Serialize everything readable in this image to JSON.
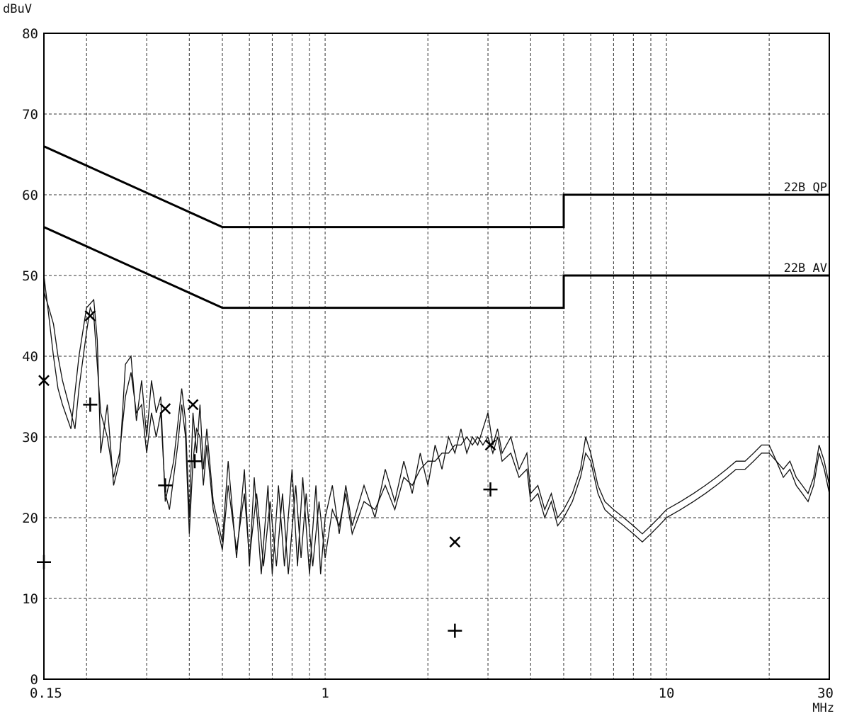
{
  "chart_data": {
    "type": "line",
    "y_unit_label": "dBuV",
    "x_unit_label": "MHz",
    "x_scale": "log",
    "xlim": [
      0.15,
      30
    ],
    "ylim": [
      0,
      80
    ],
    "grid": true,
    "y_ticks": [
      0,
      10,
      20,
      30,
      40,
      50,
      60,
      70,
      80
    ],
    "x_tick_labels": [
      {
        "value": 0.15,
        "label": "0.15"
      },
      {
        "value": 1,
        "label": "1"
      },
      {
        "value": 10,
        "label": "10"
      },
      {
        "value": 30,
        "label": "30"
      }
    ],
    "x_gridlines": [
      0.2,
      0.3,
      0.4,
      0.5,
      0.6,
      0.7,
      0.8,
      0.9,
      1,
      2,
      3,
      4,
      5,
      6,
      7,
      8,
      9,
      10,
      20
    ],
    "limit_lines": [
      {
        "name": "22B_QP",
        "points": [
          [
            0.15,
            66
          ],
          [
            0.5,
            56
          ],
          [
            5,
            56
          ],
          [
            5,
            60
          ],
          [
            30,
            60
          ]
        ]
      },
      {
        "name": "22B_AV",
        "points": [
          [
            0.15,
            56
          ],
          [
            0.5,
            46
          ],
          [
            5,
            46
          ],
          [
            5,
            50
          ],
          [
            30,
            50
          ]
        ]
      }
    ],
    "trace_1": [
      [
        0.15,
        50
      ],
      [
        0.155,
        45
      ],
      [
        0.16,
        40
      ],
      [
        0.165,
        36
      ],
      [
        0.17,
        34
      ],
      [
        0.18,
        31
      ],
      [
        0.19,
        40
      ],
      [
        0.2,
        46
      ],
      [
        0.21,
        47
      ],
      [
        0.215,
        42
      ],
      [
        0.22,
        28
      ],
      [
        0.23,
        34
      ],
      [
        0.24,
        24
      ],
      [
        0.25,
        27
      ],
      [
        0.26,
        39
      ],
      [
        0.27,
        40
      ],
      [
        0.28,
        32
      ],
      [
        0.29,
        37
      ],
      [
        0.3,
        30
      ],
      [
        0.31,
        37
      ],
      [
        0.32,
        33
      ],
      [
        0.33,
        35
      ],
      [
        0.34,
        22
      ],
      [
        0.36,
        27
      ],
      [
        0.38,
        36
      ],
      [
        0.39,
        32
      ],
      [
        0.4,
        20
      ],
      [
        0.41,
        33
      ],
      [
        0.42,
        28
      ],
      [
        0.43,
        34
      ],
      [
        0.44,
        26
      ],
      [
        0.45,
        31
      ],
      [
        0.47,
        22
      ],
      [
        0.5,
        17
      ],
      [
        0.52,
        27
      ],
      [
        0.55,
        15
      ],
      [
        0.58,
        26
      ],
      [
        0.6,
        14
      ],
      [
        0.62,
        25
      ],
      [
        0.65,
        13
      ],
      [
        0.68,
        24
      ],
      [
        0.7,
        13
      ],
      [
        0.73,
        24
      ],
      [
        0.76,
        14
      ],
      [
        0.8,
        26
      ],
      [
        0.83,
        14
      ],
      [
        0.86,
        25
      ],
      [
        0.9,
        13
      ],
      [
        0.94,
        24
      ],
      [
        0.97,
        13
      ],
      [
        1.0,
        20
      ],
      [
        1.05,
        24
      ],
      [
        1.1,
        18
      ],
      [
        1.15,
        24
      ],
      [
        1.2,
        19
      ],
      [
        1.3,
        24
      ],
      [
        1.4,
        20
      ],
      [
        1.5,
        26
      ],
      [
        1.6,
        22
      ],
      [
        1.7,
        27
      ],
      [
        1.8,
        23
      ],
      [
        1.9,
        28
      ],
      [
        2.0,
        24
      ],
      [
        2.1,
        29
      ],
      [
        2.2,
        26
      ],
      [
        2.3,
        30
      ],
      [
        2.4,
        28
      ],
      [
        2.5,
        31
      ],
      [
        2.6,
        28
      ],
      [
        2.7,
        30
      ],
      [
        2.8,
        29
      ],
      [
        2.9,
        31
      ],
      [
        3.0,
        33
      ],
      [
        3.1,
        29
      ],
      [
        3.2,
        31
      ],
      [
        3.3,
        28
      ],
      [
        3.5,
        30
      ],
      [
        3.7,
        26
      ],
      [
        3.9,
        28
      ],
      [
        4.0,
        23
      ],
      [
        4.2,
        24
      ],
      [
        4.4,
        21
      ],
      [
        4.6,
        23
      ],
      [
        4.8,
        20
      ],
      [
        5.0,
        21
      ],
      [
        5.3,
        23
      ],
      [
        5.6,
        26
      ],
      [
        5.8,
        30
      ],
      [
        6.0,
        28
      ],
      [
        6.3,
        24
      ],
      [
        6.6,
        22
      ],
      [
        7.0,
        21
      ],
      [
        7.5,
        20
      ],
      [
        8.0,
        19
      ],
      [
        8.5,
        18
      ],
      [
        9.0,
        19
      ],
      [
        9.5,
        20
      ],
      [
        10,
        21
      ],
      [
        11,
        22
      ],
      [
        12,
        23
      ],
      [
        13,
        24
      ],
      [
        14,
        25
      ],
      [
        15,
        26
      ],
      [
        16,
        27
      ],
      [
        17,
        27
      ],
      [
        18,
        28
      ],
      [
        19,
        29
      ],
      [
        20,
        29
      ],
      [
        21,
        27
      ],
      [
        22,
        26
      ],
      [
        23,
        27
      ],
      [
        24,
        25
      ],
      [
        25,
        24
      ],
      [
        26,
        23
      ],
      [
        27,
        25
      ],
      [
        28,
        29
      ],
      [
        29,
        27
      ],
      [
        30,
        24
      ]
    ],
    "trace_2": [
      [
        0.15,
        48
      ],
      [
        0.155,
        46
      ],
      [
        0.16,
        44
      ],
      [
        0.165,
        40
      ],
      [
        0.17,
        37
      ],
      [
        0.18,
        33
      ],
      [
        0.185,
        31
      ],
      [
        0.19,
        36
      ],
      [
        0.2,
        43
      ],
      [
        0.205,
        46
      ],
      [
        0.21,
        45
      ],
      [
        0.22,
        33
      ],
      [
        0.23,
        30
      ],
      [
        0.24,
        25
      ],
      [
        0.25,
        28
      ],
      [
        0.26,
        35
      ],
      [
        0.27,
        38
      ],
      [
        0.28,
        33
      ],
      [
        0.29,
        34
      ],
      [
        0.3,
        28
      ],
      [
        0.31,
        33
      ],
      [
        0.32,
        30
      ],
      [
        0.33,
        33
      ],
      [
        0.34,
        23
      ],
      [
        0.35,
        21
      ],
      [
        0.37,
        29
      ],
      [
        0.38,
        34
      ],
      [
        0.39,
        30
      ],
      [
        0.4,
        18
      ],
      [
        0.41,
        27
      ],
      [
        0.42,
        31
      ],
      [
        0.43,
        30
      ],
      [
        0.44,
        24
      ],
      [
        0.45,
        29
      ],
      [
        0.47,
        21
      ],
      [
        0.5,
        16
      ],
      [
        0.52,
        24
      ],
      [
        0.55,
        16
      ],
      [
        0.58,
        23
      ],
      [
        0.6,
        15
      ],
      [
        0.63,
        23
      ],
      [
        0.66,
        14
      ],
      [
        0.69,
        22
      ],
      [
        0.72,
        14
      ],
      [
        0.75,
        23
      ],
      [
        0.78,
        13
      ],
      [
        0.82,
        24
      ],
      [
        0.85,
        15
      ],
      [
        0.88,
        23
      ],
      [
        0.92,
        14
      ],
      [
        0.96,
        22
      ],
      [
        1.0,
        15
      ],
      [
        1.05,
        21
      ],
      [
        1.1,
        19
      ],
      [
        1.15,
        23
      ],
      [
        1.2,
        18
      ],
      [
        1.3,
        22
      ],
      [
        1.4,
        21
      ],
      [
        1.5,
        24
      ],
      [
        1.6,
        21
      ],
      [
        1.7,
        25
      ],
      [
        1.8,
        24
      ],
      [
        1.9,
        26
      ],
      [
        2.0,
        27
      ],
      [
        2.1,
        27
      ],
      [
        2.2,
        28
      ],
      [
        2.3,
        28
      ],
      [
        2.4,
        29
      ],
      [
        2.5,
        29
      ],
      [
        2.6,
        30
      ],
      [
        2.7,
        29
      ],
      [
        2.8,
        30
      ],
      [
        2.9,
        29
      ],
      [
        3.0,
        30
      ],
      [
        3.1,
        28
      ],
      [
        3.2,
        30
      ],
      [
        3.3,
        27
      ],
      [
        3.5,
        28
      ],
      [
        3.7,
        25
      ],
      [
        3.9,
        26
      ],
      [
        4.0,
        22
      ],
      [
        4.2,
        23
      ],
      [
        4.4,
        20
      ],
      [
        4.6,
        22
      ],
      [
        4.8,
        19
      ],
      [
        5.0,
        20
      ],
      [
        5.3,
        22
      ],
      [
        5.6,
        25
      ],
      [
        5.8,
        28
      ],
      [
        6.0,
        27
      ],
      [
        6.3,
        23
      ],
      [
        6.6,
        21
      ],
      [
        7.0,
        20
      ],
      [
        7.5,
        19
      ],
      [
        8.0,
        18
      ],
      [
        8.5,
        17
      ],
      [
        9.0,
        18
      ],
      [
        9.5,
        19
      ],
      [
        10,
        20
      ],
      [
        11,
        21
      ],
      [
        12,
        22
      ],
      [
        13,
        23
      ],
      [
        14,
        24
      ],
      [
        15,
        25
      ],
      [
        16,
        26
      ],
      [
        17,
        26
      ],
      [
        18,
        27
      ],
      [
        19,
        28
      ],
      [
        20,
        28
      ],
      [
        21,
        27
      ],
      [
        22,
        25
      ],
      [
        23,
        26
      ],
      [
        24,
        24
      ],
      [
        25,
        23
      ],
      [
        26,
        22
      ],
      [
        27,
        24
      ],
      [
        28,
        28
      ],
      [
        29,
        26
      ],
      [
        30,
        23
      ]
    ],
    "markers_x": [
      [
        0.15,
        37
      ],
      [
        0.205,
        45
      ],
      [
        0.34,
        33.5
      ],
      [
        0.41,
        34
      ],
      [
        2.4,
        17
      ],
      [
        3.05,
        29
      ]
    ],
    "markers_plus": [
      [
        0.15,
        14.5
      ],
      [
        0.205,
        34
      ],
      [
        0.34,
        24
      ],
      [
        0.415,
        27
      ],
      [
        2.4,
        6
      ],
      [
        3.05,
        23.5
      ]
    ]
  }
}
